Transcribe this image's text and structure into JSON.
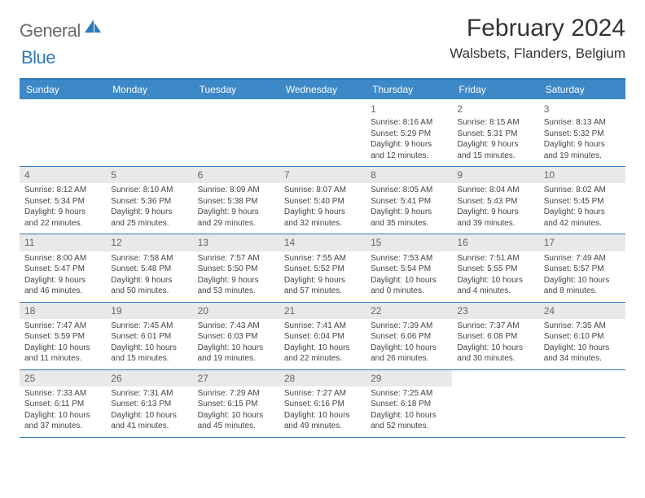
{
  "brand": {
    "word1": "General",
    "word2": "Blue"
  },
  "title": "February 2024",
  "location": "Walsbets, Flanders, Belgium",
  "colors": {
    "header_bg": "#3d88c7",
    "border": "#2f79b9",
    "daynum_bg": "#e9e9e9",
    "text": "#333333",
    "logo_gray": "#6a6a6a",
    "logo_blue": "#2f79b9"
  },
  "typography": {
    "title_fontsize": 30,
    "location_fontsize": 17,
    "dow_fontsize": 12,
    "body_fontsize": 10
  },
  "layout": {
    "columns": 7,
    "rows": 5,
    "aspect": "792x612"
  },
  "daysOfWeek": [
    "Sunday",
    "Monday",
    "Tuesday",
    "Wednesday",
    "Thursday",
    "Friday",
    "Saturday"
  ],
  "weeks": [
    [
      {
        "n": "",
        "lines": []
      },
      {
        "n": "",
        "lines": []
      },
      {
        "n": "",
        "lines": []
      },
      {
        "n": "",
        "lines": []
      },
      {
        "n": "1",
        "lines": [
          "Sunrise: 8:16 AM",
          "Sunset: 5:29 PM",
          "Daylight: 9 hours and 12 minutes."
        ]
      },
      {
        "n": "2",
        "lines": [
          "Sunrise: 8:15 AM",
          "Sunset: 5:31 PM",
          "Daylight: 9 hours and 15 minutes."
        ]
      },
      {
        "n": "3",
        "lines": [
          "Sunrise: 8:13 AM",
          "Sunset: 5:32 PM",
          "Daylight: 9 hours and 19 minutes."
        ]
      }
    ],
    [
      {
        "n": "4",
        "bg": true,
        "lines": [
          "Sunrise: 8:12 AM",
          "Sunset: 5:34 PM",
          "Daylight: 9 hours and 22 minutes."
        ]
      },
      {
        "n": "5",
        "bg": true,
        "lines": [
          "Sunrise: 8:10 AM",
          "Sunset: 5:36 PM",
          "Daylight: 9 hours and 25 minutes."
        ]
      },
      {
        "n": "6",
        "bg": true,
        "lines": [
          "Sunrise: 8:09 AM",
          "Sunset: 5:38 PM",
          "Daylight: 9 hours and 29 minutes."
        ]
      },
      {
        "n": "7",
        "bg": true,
        "lines": [
          "Sunrise: 8:07 AM",
          "Sunset: 5:40 PM",
          "Daylight: 9 hours and 32 minutes."
        ]
      },
      {
        "n": "8",
        "bg": true,
        "lines": [
          "Sunrise: 8:05 AM",
          "Sunset: 5:41 PM",
          "Daylight: 9 hours and 35 minutes."
        ]
      },
      {
        "n": "9",
        "bg": true,
        "lines": [
          "Sunrise: 8:04 AM",
          "Sunset: 5:43 PM",
          "Daylight: 9 hours and 39 minutes."
        ]
      },
      {
        "n": "10",
        "bg": true,
        "lines": [
          "Sunrise: 8:02 AM",
          "Sunset: 5:45 PM",
          "Daylight: 9 hours and 42 minutes."
        ]
      }
    ],
    [
      {
        "n": "11",
        "bg": true,
        "lines": [
          "Sunrise: 8:00 AM",
          "Sunset: 5:47 PM",
          "Daylight: 9 hours and 46 minutes."
        ]
      },
      {
        "n": "12",
        "bg": true,
        "lines": [
          "Sunrise: 7:58 AM",
          "Sunset: 5:48 PM",
          "Daylight: 9 hours and 50 minutes."
        ]
      },
      {
        "n": "13",
        "bg": true,
        "lines": [
          "Sunrise: 7:57 AM",
          "Sunset: 5:50 PM",
          "Daylight: 9 hours and 53 minutes."
        ]
      },
      {
        "n": "14",
        "bg": true,
        "lines": [
          "Sunrise: 7:55 AM",
          "Sunset: 5:52 PM",
          "Daylight: 9 hours and 57 minutes."
        ]
      },
      {
        "n": "15",
        "bg": true,
        "lines": [
          "Sunrise: 7:53 AM",
          "Sunset: 5:54 PM",
          "Daylight: 10 hours and 0 minutes."
        ]
      },
      {
        "n": "16",
        "bg": true,
        "lines": [
          "Sunrise: 7:51 AM",
          "Sunset: 5:55 PM",
          "Daylight: 10 hours and 4 minutes."
        ]
      },
      {
        "n": "17",
        "bg": true,
        "lines": [
          "Sunrise: 7:49 AM",
          "Sunset: 5:57 PM",
          "Daylight: 10 hours and 8 minutes."
        ]
      }
    ],
    [
      {
        "n": "18",
        "bg": true,
        "lines": [
          "Sunrise: 7:47 AM",
          "Sunset: 5:59 PM",
          "Daylight: 10 hours and 11 minutes."
        ]
      },
      {
        "n": "19",
        "bg": true,
        "lines": [
          "Sunrise: 7:45 AM",
          "Sunset: 6:01 PM",
          "Daylight: 10 hours and 15 minutes."
        ]
      },
      {
        "n": "20",
        "bg": true,
        "lines": [
          "Sunrise: 7:43 AM",
          "Sunset: 6:03 PM",
          "Daylight: 10 hours and 19 minutes."
        ]
      },
      {
        "n": "21",
        "bg": true,
        "lines": [
          "Sunrise: 7:41 AM",
          "Sunset: 6:04 PM",
          "Daylight: 10 hours and 22 minutes."
        ]
      },
      {
        "n": "22",
        "bg": true,
        "lines": [
          "Sunrise: 7:39 AM",
          "Sunset: 6:06 PM",
          "Daylight: 10 hours and 26 minutes."
        ]
      },
      {
        "n": "23",
        "bg": true,
        "lines": [
          "Sunrise: 7:37 AM",
          "Sunset: 6:08 PM",
          "Daylight: 10 hours and 30 minutes."
        ]
      },
      {
        "n": "24",
        "bg": true,
        "lines": [
          "Sunrise: 7:35 AM",
          "Sunset: 6:10 PM",
          "Daylight: 10 hours and 34 minutes."
        ]
      }
    ],
    [
      {
        "n": "25",
        "bg": true,
        "lines": [
          "Sunrise: 7:33 AM",
          "Sunset: 6:11 PM",
          "Daylight: 10 hours and 37 minutes."
        ]
      },
      {
        "n": "26",
        "bg": true,
        "lines": [
          "Sunrise: 7:31 AM",
          "Sunset: 6:13 PM",
          "Daylight: 10 hours and 41 minutes."
        ]
      },
      {
        "n": "27",
        "bg": true,
        "lines": [
          "Sunrise: 7:29 AM",
          "Sunset: 6:15 PM",
          "Daylight: 10 hours and 45 minutes."
        ]
      },
      {
        "n": "28",
        "bg": true,
        "lines": [
          "Sunrise: 7:27 AM",
          "Sunset: 6:16 PM",
          "Daylight: 10 hours and 49 minutes."
        ]
      },
      {
        "n": "29",
        "bg": true,
        "lines": [
          "Sunrise: 7:25 AM",
          "Sunset: 6:18 PM",
          "Daylight: 10 hours and 52 minutes."
        ]
      },
      {
        "n": "",
        "lines": []
      },
      {
        "n": "",
        "lines": []
      }
    ]
  ]
}
